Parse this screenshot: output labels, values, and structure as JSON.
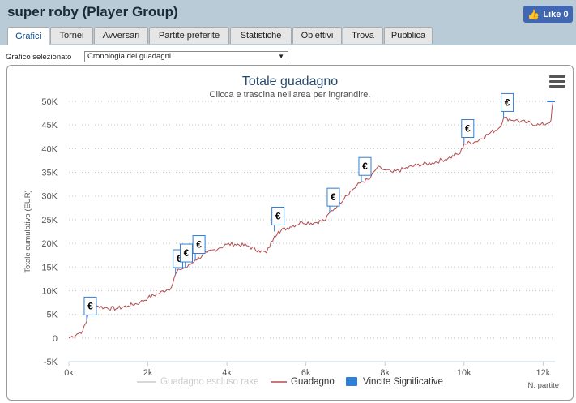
{
  "page": {
    "title": "super roby (Player Group)",
    "like_label": "Like 0",
    "like_icon": "thumbs-up-icon"
  },
  "tabs": [
    {
      "label": "Grafici",
      "active": true
    },
    {
      "label": "Tornei",
      "active": false
    },
    {
      "label": "Avversari",
      "active": false
    },
    {
      "label": "Partite preferite",
      "active": false
    },
    {
      "label": "Statistiche",
      "active": false
    },
    {
      "label": "Obiettivi",
      "active": false
    },
    {
      "label": "Trova",
      "active": false
    },
    {
      "label": "Pubblica",
      "active": false
    }
  ],
  "selector": {
    "label": "Grafico selezionato",
    "value": "Cronologia dei guadagni"
  },
  "chart_data": {
    "type": "line",
    "title": "Totale guadagno",
    "subtitle": "Clicca e trascina nell'area per ingrandire.",
    "ylabel": "Totale cumulativo (EUR)",
    "xlabel": "N. partite",
    "ylim": [
      -5000,
      50000
    ],
    "xlim": [
      0,
      12300
    ],
    "y_ticks": [
      "50K",
      "45K",
      "40K",
      "35K",
      "30K",
      "25K",
      "20K",
      "15K",
      "10K",
      "5K",
      "0",
      "-5K"
    ],
    "x_ticks": [
      "0k",
      "2k",
      "4k",
      "6k",
      "8k",
      "10k",
      "12k"
    ],
    "grid": true,
    "legend_position": "bottom",
    "series": [
      {
        "name": "Guadagno escluso rake",
        "color": "#cccccc",
        "visible": false,
        "x": [],
        "y": []
      },
      {
        "name": "Guadagno",
        "color": "#b54a4f",
        "x": [
          0,
          200,
          350,
          450,
          500,
          700,
          900,
          1200,
          1500,
          1800,
          2000,
          2300,
          2600,
          2700,
          2800,
          3000,
          3200,
          3500,
          3800,
          4000,
          4200,
          4500,
          4800,
          5000,
          5200,
          5300,
          5600,
          5900,
          6200,
          6500,
          6600,
          6800,
          7000,
          7200,
          7400,
          7600,
          7800,
          8000,
          8200,
          8500,
          8800,
          9200,
          9600,
          9900,
          10000,
          10300,
          10600,
          10900,
          11000,
          11300,
          11600,
          11900,
          12100,
          12200,
          12250
        ],
        "y": [
          0,
          800,
          1500,
          3500,
          6000,
          6800,
          6400,
          6200,
          6800,
          7500,
          8500,
          9500,
          10800,
          13500,
          14500,
          15000,
          16500,
          18000,
          19000,
          19800,
          19800,
          19500,
          18500,
          18000,
          21500,
          22500,
          23500,
          24500,
          24300,
          25000,
          26500,
          28000,
          30000,
          31500,
          33000,
          33500,
          36000,
          35500,
          35000,
          35800,
          36500,
          37000,
          38000,
          39000,
          41000,
          41500,
          43000,
          44500,
          46500,
          46000,
          45500,
          45000,
          45300,
          46000,
          50000
        ]
      },
      {
        "name": "Vincite Significative",
        "color": "#2f7ed8",
        "marker": "€",
        "x": [
          450,
          2700,
          2880,
          3200,
          5200,
          6600,
          7400,
          10000,
          11000
        ],
        "y": [
          3500,
          13500,
          14700,
          16500,
          22500,
          26500,
          33000,
          41000,
          46500
        ]
      }
    ]
  }
}
